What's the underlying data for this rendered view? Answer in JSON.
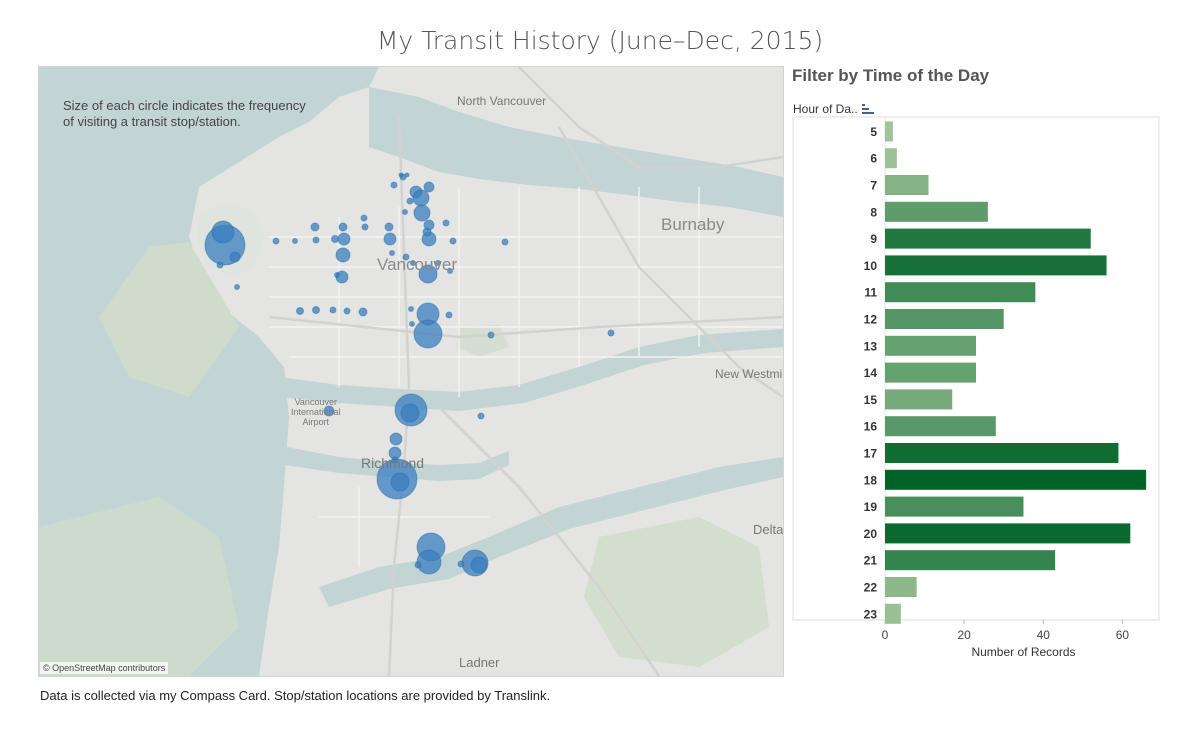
{
  "page": {
    "title": "My Transit History (June–Dec, 2015)",
    "footer": "Data is collected via my Compass Card. Stop/station locations are provided by Translink."
  },
  "map": {
    "note_line1": "Size of each circle indicates the frequency",
    "note_line2": "of visiting a transit stop/station.",
    "attribution": "© OpenStreetMap contributors",
    "places": {
      "north_vancouver": "North Vancouver",
      "burnaby": "Burnaby",
      "vancouver": "Vancouver",
      "new_westminster": "New Westmi",
      "vancouver_airport_line1": "Vancouver",
      "vancouver_airport_line2": "International",
      "vancouver_airport_line3": "Airport",
      "richmond": "Richmond",
      "delta": "Delta",
      "ladner": "Ladner"
    },
    "colors": {
      "water": "#c3d4d5",
      "land": "#e4e4e2",
      "park": "#cfdccb",
      "stop": "#3a7fbf"
    }
  },
  "filter_panel": {
    "title": "Filter by Time of the Day",
    "hour_header": "Hour of Da..",
    "sort_icon": "sort-descending-icon"
  },
  "chart_data": {
    "type": "bar",
    "orientation": "horizontal",
    "categories": [
      "5",
      "6",
      "7",
      "8",
      "9",
      "10",
      "11",
      "12",
      "13",
      "14",
      "15",
      "16",
      "17",
      "18",
      "19",
      "20",
      "21",
      "22",
      "23"
    ],
    "values": [
      2,
      3,
      11,
      26,
      52,
      56,
      38,
      30,
      23,
      23,
      17,
      28,
      59,
      66,
      35,
      62,
      43,
      8,
      4
    ],
    "xlabel": "Number of Records",
    "ylabel": "Hour of Da..",
    "xlim": [
      0,
      69
    ],
    "xticks": [
      0,
      20,
      40,
      60
    ],
    "color_scale": [
      "#a7c79e",
      "#006428"
    ]
  }
}
